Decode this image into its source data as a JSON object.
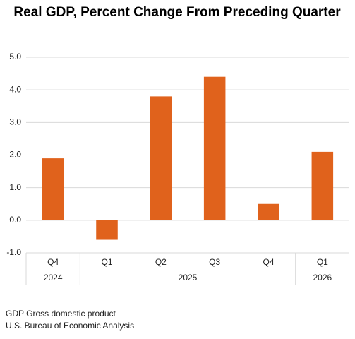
{
  "chart_data": {
    "type": "bar",
    "title": "Real GDP, Percent Change From Preceding Quarter",
    "categories": [
      "Q4",
      "Q1",
      "Q2",
      "Q3",
      "Q4",
      "Q1"
    ],
    "years": [
      "2024",
      "2025",
      "2025",
      "2025",
      "2025",
      "2026"
    ],
    "values": [
      1.9,
      -0.6,
      3.8,
      4.4,
      0.5,
      2.1
    ],
    "color": "#e0621c",
    "ylim": [
      -1,
      5
    ],
    "yticks": [
      {
        "value": -1,
        "label": "-1.0"
      },
      {
        "value": 0,
        "label": "0.0"
      },
      {
        "value": 1,
        "label": "1.0"
      },
      {
        "value": 2,
        "label": "2.0"
      },
      {
        "value": 3,
        "label": "3.0"
      },
      {
        "value": 4,
        "label": "4.0"
      },
      {
        "value": 5,
        "label": "5.0"
      }
    ],
    "grid": true,
    "notes": [
      "GDP Gross domestic product",
      "U.S. Bureau of Economic Analysis"
    ]
  }
}
